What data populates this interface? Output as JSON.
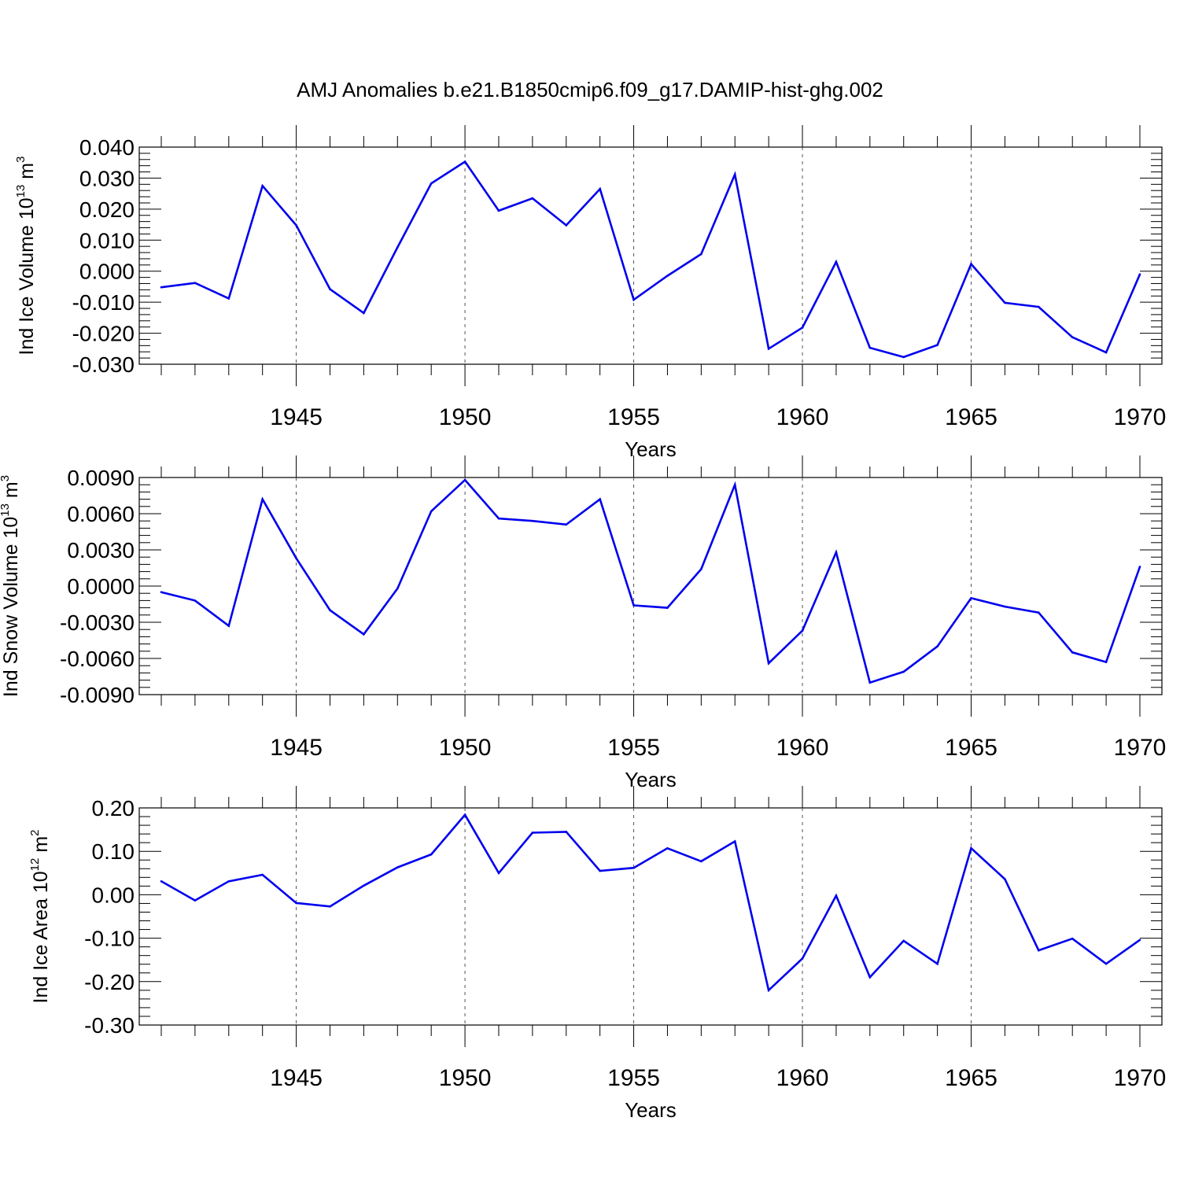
{
  "title": "AMJ Anomalies b.e21.B1850cmip6.f09_g17.DAMIP-hist-ghg.002",
  "colors": {
    "line": "#0000ee",
    "axis": "#000000",
    "grid": "#555555"
  },
  "chart_data": [
    {
      "type": "line",
      "ylabel": {
        "text": "Ind Ice Volume 10",
        "exp": "13",
        "unit": " m",
        "unit_exp": "3"
      },
      "xlabel": "Years",
      "xlim": [
        1941,
        1970
      ],
      "ylim": [
        -0.03,
        0.04
      ],
      "yticks": [
        "0.040",
        "0.030",
        "0.020",
        "0.010",
        "0.000",
        "-0.010",
        "-0.020",
        "-0.030"
      ],
      "xticks": [
        "1945",
        "1950",
        "1955",
        "1960",
        "1965",
        "1970"
      ],
      "grid": "vertical dashed at labeled years",
      "x": [
        1941,
        1942,
        1943,
        1944,
        1945,
        1946,
        1947,
        1948,
        1949,
        1950,
        1951,
        1952,
        1953,
        1954,
        1955,
        1956,
        1957,
        1958,
        1959,
        1960,
        1961,
        1962,
        1963,
        1964,
        1965,
        1966,
        1967,
        1968,
        1969,
        1970
      ],
      "values": [
        -0.0052,
        -0.0038,
        -0.0088,
        0.0275,
        0.0148,
        -0.0058,
        -0.0135,
        0.0077,
        0.0283,
        0.0353,
        0.0195,
        0.0235,
        0.0148,
        0.0265,
        -0.0092,
        -0.0015,
        0.0055,
        0.0312,
        -0.025,
        -0.0182,
        0.003,
        -0.0247,
        -0.0277,
        -0.0238,
        0.0023,
        -0.0102,
        -0.0115,
        -0.0213,
        -0.0262,
        -0.001
      ]
    },
    {
      "type": "line",
      "ylabel": {
        "text": "Ind Snow Volume 10",
        "exp": "13",
        "unit": " m",
        "unit_exp": "3"
      },
      "xlabel": "Years",
      "xlim": [
        1941,
        1970
      ],
      "ylim": [
        -0.009,
        0.009
      ],
      "yticks": [
        "0.0090",
        "0.0060",
        "0.0030",
        "0.0000",
        "-0.0030",
        "-0.0060",
        "-0.0090"
      ],
      "xticks": [
        "1945",
        "1950",
        "1955",
        "1960",
        "1965",
        "1970"
      ],
      "grid": "vertical dashed at labeled years",
      "x": [
        1941,
        1942,
        1943,
        1944,
        1945,
        1946,
        1947,
        1948,
        1949,
        1950,
        1951,
        1952,
        1953,
        1954,
        1955,
        1956,
        1957,
        1958,
        1959,
        1960,
        1961,
        1962,
        1963,
        1964,
        1965,
        1966,
        1967,
        1968,
        1969,
        1970
      ],
      "values": [
        -0.0005,
        -0.0012,
        -0.0033,
        0.0072,
        0.0023,
        -0.002,
        -0.004,
        -0.0002,
        0.0062,
        0.0088,
        0.0056,
        0.0054,
        0.0051,
        0.0072,
        -0.0016,
        -0.0018,
        0.0014,
        0.0084,
        -0.0064,
        -0.0037,
        0.0028,
        -0.008,
        -0.0071,
        -0.005,
        -0.001,
        -0.0017,
        -0.0022,
        -0.0055,
        -0.0063,
        0.0016
      ]
    },
    {
      "type": "line",
      "ylabel": {
        "text": "Ind Ice Area 10",
        "exp": "12",
        "unit": " m",
        "unit_exp": "2"
      },
      "xlabel": "Years",
      "xlim": [
        1941,
        1970
      ],
      "ylim": [
        -0.3,
        0.2
      ],
      "yticks": [
        "0.20",
        "0.10",
        "0.00",
        "-0.10",
        "-0.20",
        "-0.30"
      ],
      "xticks": [
        "1945",
        "1950",
        "1955",
        "1960",
        "1965",
        "1970"
      ],
      "grid": "vertical dashed at labeled years",
      "x": [
        1941,
        1942,
        1943,
        1944,
        1945,
        1946,
        1947,
        1948,
        1949,
        1950,
        1951,
        1952,
        1953,
        1954,
        1955,
        1956,
        1957,
        1958,
        1959,
        1960,
        1961,
        1962,
        1963,
        1964,
        1965,
        1966,
        1967,
        1968,
        1969,
        1970
      ],
      "values": [
        0.031,
        -0.013,
        0.031,
        0.046,
        -0.019,
        -0.027,
        0.021,
        0.063,
        0.093,
        0.184,
        0.05,
        0.143,
        0.145,
        0.055,
        0.062,
        0.107,
        0.077,
        0.123,
        -0.22,
        -0.147,
        -0.002,
        -0.19,
        -0.106,
        -0.159,
        0.107,
        0.036,
        -0.128,
        -0.101,
        -0.159,
        -0.104
      ]
    }
  ]
}
